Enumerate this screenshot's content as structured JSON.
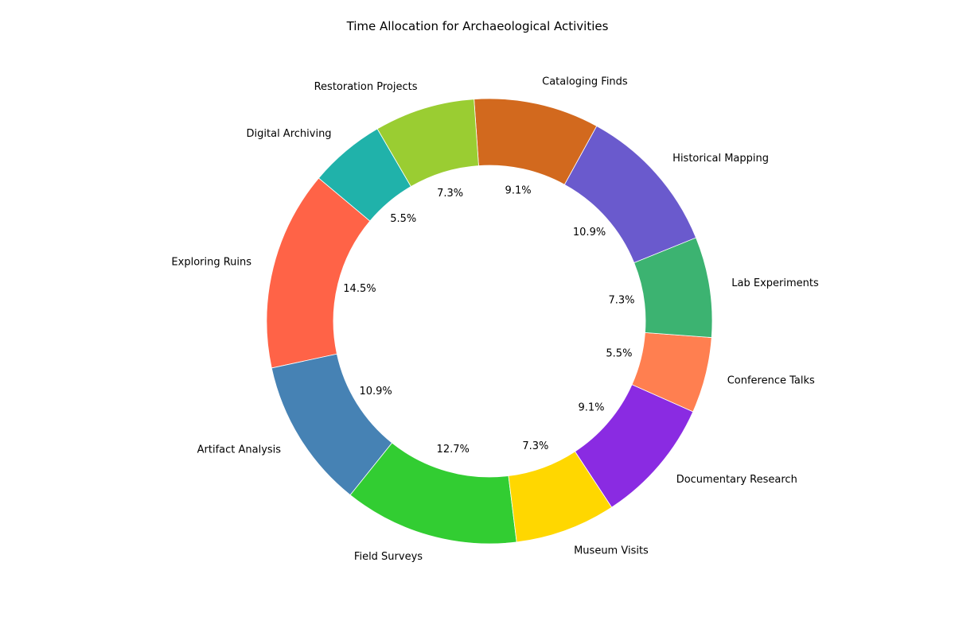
{
  "chart_data": {
    "type": "pie",
    "variant": "donut",
    "title": "Time Allocation for Archaeological Activities",
    "start_angle_deg": 140,
    "direction": "counterclockwise",
    "slices": [
      {
        "label": "Exploring Ruins",
        "value": 14.5,
        "pct_label": "14.5%",
        "color": "#FF6347"
      },
      {
        "label": "Artifact Analysis",
        "value": 10.9,
        "pct_label": "10.9%",
        "color": "#4682B4"
      },
      {
        "label": "Field Surveys",
        "value": 12.7,
        "pct_label": "12.7%",
        "color": "#32CD32"
      },
      {
        "label": "Museum Visits",
        "value": 7.3,
        "pct_label": "7.3%",
        "color": "#FFD700"
      },
      {
        "label": "Documentary Research",
        "value": 9.1,
        "pct_label": "9.1%",
        "color": "#8A2BE2"
      },
      {
        "label": "Conference Talks",
        "value": 5.5,
        "pct_label": "5.5%",
        "color": "#FF7F50"
      },
      {
        "label": "Lab Experiments",
        "value": 7.3,
        "pct_label": "7.3%",
        "color": "#3CB371"
      },
      {
        "label": "Historical Mapping",
        "value": 10.9,
        "pct_label": "10.9%",
        "color": "#6A5ACD"
      },
      {
        "label": "Cataloging Finds",
        "value": 9.1,
        "pct_label": "9.1%",
        "color": "#D2691E"
      },
      {
        "label": "Restoration Projects",
        "value": 7.3,
        "pct_label": "7.3%",
        "color": "#9ACD32"
      },
      {
        "label": "Digital Archiving",
        "value": 5.5,
        "pct_label": "5.5%",
        "color": "#20B2AA"
      }
    ]
  }
}
